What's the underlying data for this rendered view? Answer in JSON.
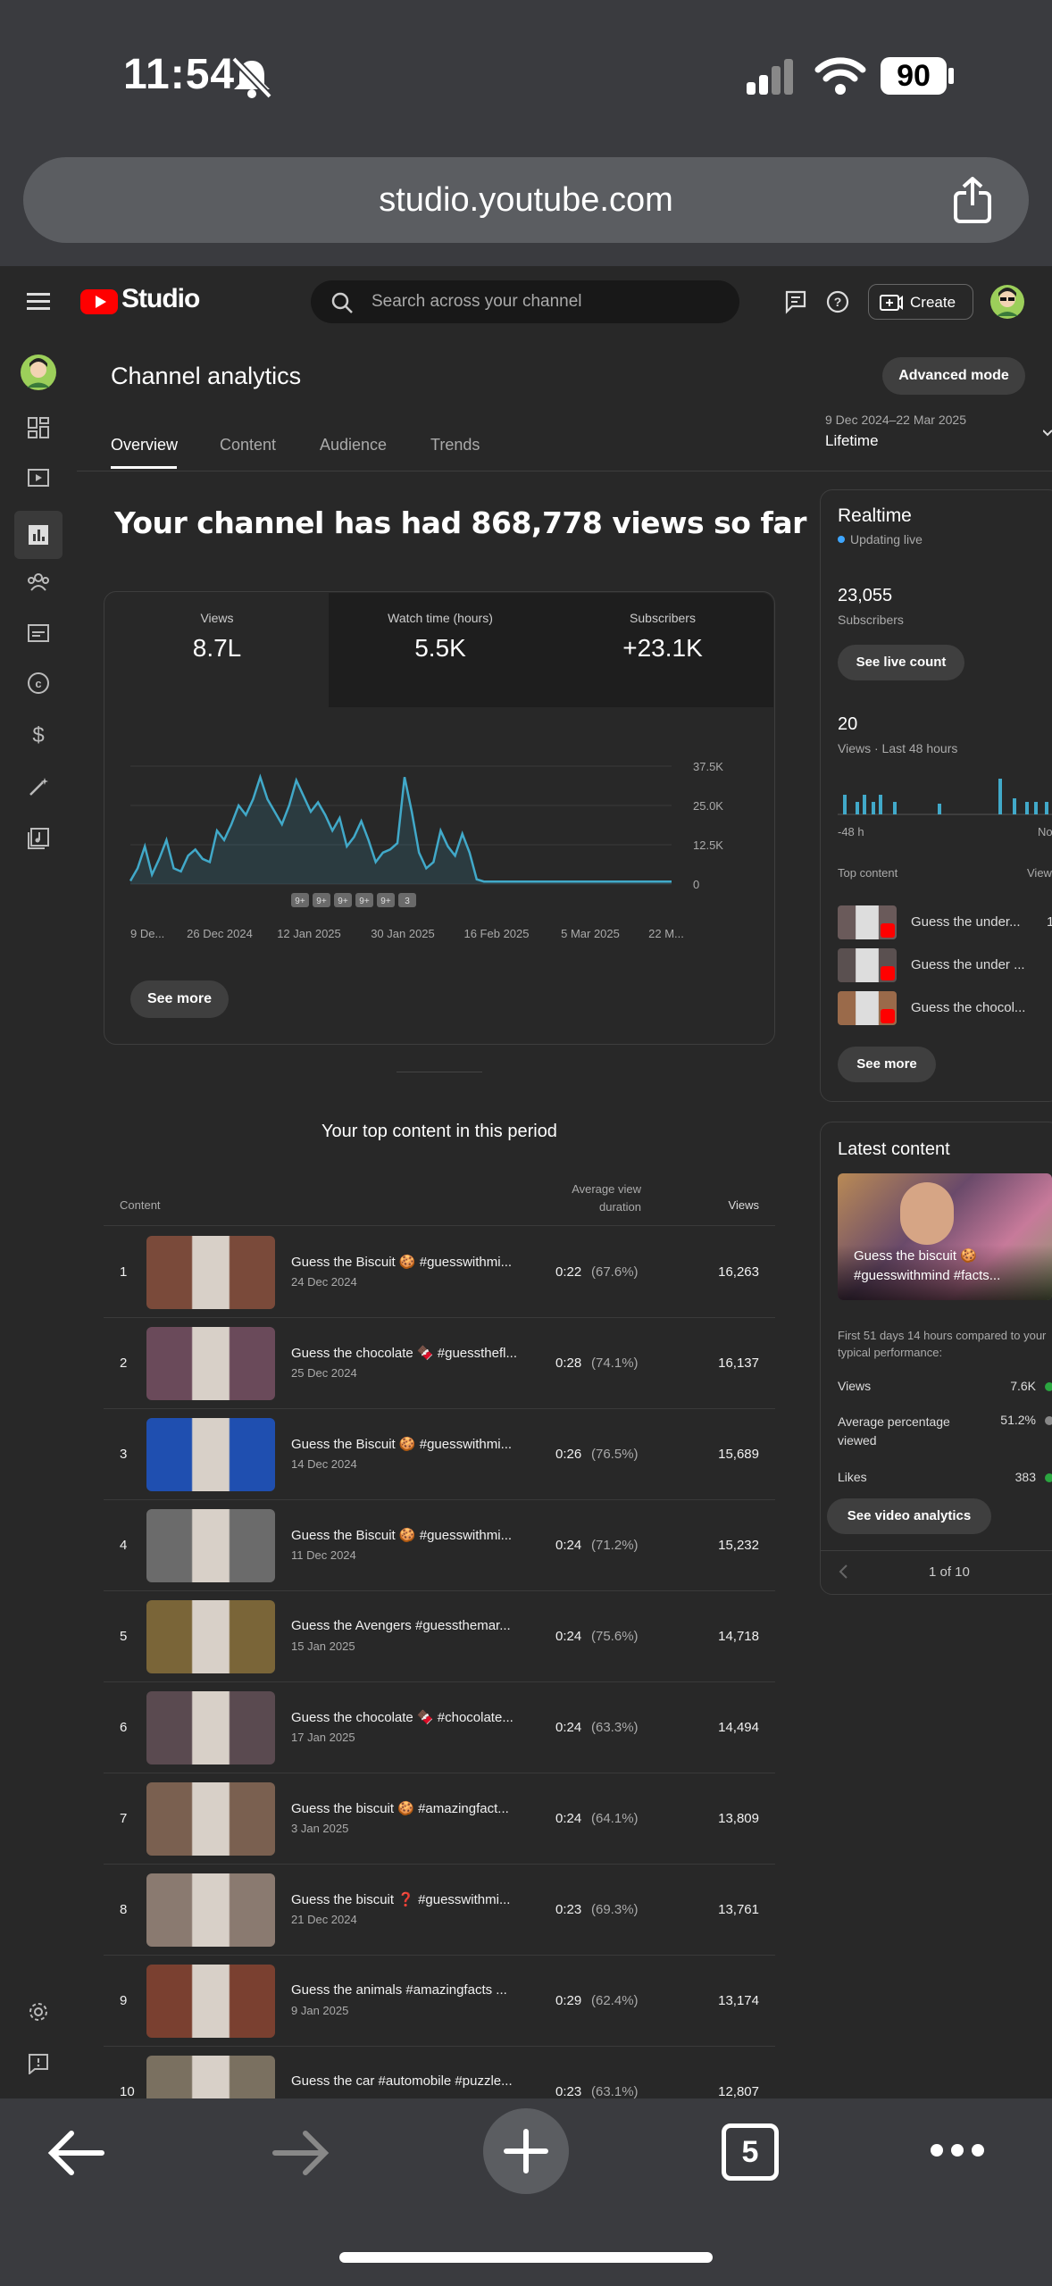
{
  "status": {
    "time": "11:54",
    "battery": "90"
  },
  "browser": {
    "url": "studio.youtube.com",
    "tab_count": "5"
  },
  "header": {
    "logo": "Studio",
    "search_placeholder": "Search across your channel",
    "create": "Create"
  },
  "page": {
    "title": "Channel analytics",
    "advanced_mode": "Advanced mode",
    "tabs": [
      "Overview",
      "Content",
      "Audience",
      "Trends"
    ],
    "date_range": "9 Dec 2024–22 Mar 2025",
    "period": "Lifetime",
    "headline": "Your channel has had 868,778 views so far"
  },
  "metrics": [
    {
      "label": "Views",
      "value": "8.7L"
    },
    {
      "label": "Watch time (hours)",
      "value": "5.5K"
    },
    {
      "label": "Subscribers",
      "value": "+23.1K"
    }
  ],
  "chart_data": {
    "type": "line",
    "x_tick_labels": [
      "9 De...",
      "26 Dec 2024",
      "12 Jan 2025",
      "30 Jan 2025",
      "16 Feb 2025",
      "5 Mar 2025",
      "22 M..."
    ],
    "y_tick_labels": [
      "37.5K",
      "25.0K",
      "12.5K",
      "0"
    ],
    "ylim": [
      0,
      37500
    ],
    "series": [
      {
        "values": [
          1000,
          5000,
          12000,
          3000,
          8000,
          14000,
          5000,
          4000,
          9000,
          11000,
          8000,
          7000,
          17000,
          14000,
          19000,
          25000,
          22000,
          27000,
          34000,
          27000,
          23000,
          19000,
          25000,
          33000,
          28000,
          23000,
          26000,
          22000,
          17000,
          21000,
          12000,
          15000,
          20000,
          14000,
          7000,
          10000,
          11000,
          13000,
          34000,
          23000,
          10000,
          5000,
          7000,
          17000,
          12000,
          9000,
          16000,
          10000,
          1500,
          800,
          800,
          800,
          800,
          800,
          800,
          800,
          800,
          800,
          800,
          800,
          800,
          800,
          800,
          800,
          800,
          800,
          800,
          800,
          800,
          800,
          800,
          800,
          800,
          800,
          800,
          800
        ]
      }
    ],
    "markers": [
      "9+",
      "9+",
      "9+",
      "9+",
      "9+",
      "3"
    ],
    "see_more": "See more"
  },
  "realtime": {
    "title": "Realtime",
    "status": "Updating live",
    "subscribers_value": "23,055",
    "subscribers_label": "Subscribers",
    "see_live": "See live count",
    "views_value": "20",
    "views_label": "Views · Last 48 hours",
    "axis_start": "-48 h",
    "axis_end": "No",
    "top_content_label": "Top content",
    "views_col": "View",
    "top_items": [
      "Guess the under...",
      "Guess the under ...",
      "Guess the chocol..."
    ],
    "top_values": [
      "1",
      "",
      ""
    ],
    "see_more": "See more"
  },
  "latest": {
    "title": "Latest content",
    "video_title": "Guess the biscuit 🍪 #guesswithmind #facts...",
    "compare": "First 51 days 14 hours compared to your typical performance:",
    "stats": [
      {
        "label": "Views",
        "value": "7.6K"
      },
      {
        "label": "Average percentage viewed",
        "value": "51.2%"
      },
      {
        "label": "Likes",
        "value": "383"
      }
    ],
    "see_analytics": "See video analytics",
    "pager": "1 of 10"
  },
  "top_content": {
    "heading": "Your top content in this period",
    "col_content": "Content",
    "col_avg": "Average view duration",
    "col_views": "Views",
    "rows": [
      {
        "rank": "1",
        "title": "Guess the Biscuit 🍪 #guesswithmi...",
        "date": "24 Dec 2024",
        "dur": "0:22",
        "pct": "(67.6%)",
        "views": "16,263",
        "color": "#7a4a3a"
      },
      {
        "rank": "2",
        "title": "Guess the chocolate 🍫 #guessthefl...",
        "date": "25 Dec 2024",
        "dur": "0:28",
        "pct": "(74.1%)",
        "views": "16,137",
        "color": "#6a4a5a"
      },
      {
        "rank": "3",
        "title": "Guess the Biscuit 🍪 #guesswithmi...",
        "date": "14 Dec 2024",
        "dur": "0:26",
        "pct": "(76.5%)",
        "views": "15,689",
        "color": "#1f4fb0"
      },
      {
        "rank": "4",
        "title": "Guess the Biscuit 🍪 #guesswithmi...",
        "date": "11 Dec 2024",
        "dur": "0:24",
        "pct": "(71.2%)",
        "views": "15,232",
        "color": "#6b6b6b"
      },
      {
        "rank": "5",
        "title": "Guess the Avengers #guessthemar...",
        "date": "15 Jan 2025",
        "dur": "0:24",
        "pct": "(75.6%)",
        "views": "14,718",
        "color": "#7a6538"
      },
      {
        "rank": "6",
        "title": "Guess the chocolate 🍫 #chocolate...",
        "date": "17 Jan 2025",
        "dur": "0:24",
        "pct": "(63.3%)",
        "views": "14,494",
        "color": "#5a4a50"
      },
      {
        "rank": "7",
        "title": "Guess the biscuit 🍪 #amazingfact...",
        "date": "3 Jan 2025",
        "dur": "0:24",
        "pct": "(64.1%)",
        "views": "13,809",
        "color": "#7a6050"
      },
      {
        "rank": "8",
        "title": "Guess the biscuit ❓ #guesswithmi...",
        "date": "21 Dec 2024",
        "dur": "0:23",
        "pct": "(69.3%)",
        "views": "13,761",
        "color": "#8a7a70"
      },
      {
        "rank": "9",
        "title": "Guess the animals #amazingfacts ...",
        "date": "9 Jan 2025",
        "dur": "0:29",
        "pct": "(62.4%)",
        "views": "13,174",
        "color": "#7a4030"
      },
      {
        "rank": "10",
        "title": "Guess the car #automobile #puzzle...",
        "date": "",
        "dur": "0:23",
        "pct": "(63.1%)",
        "views": "12,807",
        "color": "#7a7060"
      }
    ]
  }
}
